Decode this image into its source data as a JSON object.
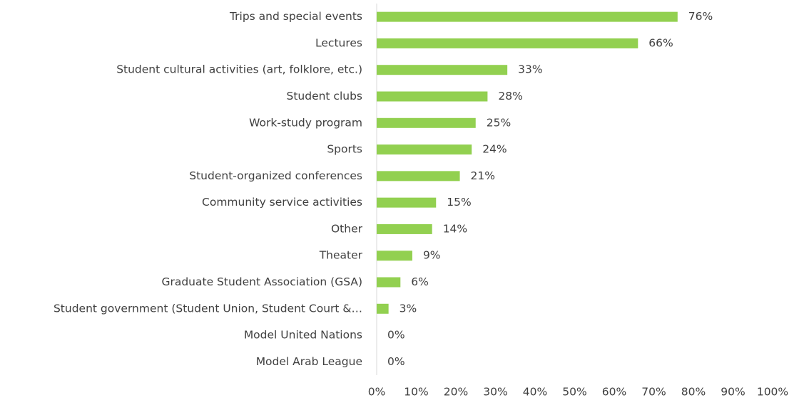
{
  "chart_data": {
    "type": "bar",
    "orientation": "horizontal",
    "categories": [
      "Trips and special events",
      "Lectures",
      "Student cultural activities (art, folklore, etc.)",
      "Student clubs",
      "Work-study program",
      "Sports",
      "Student-organized conferences",
      "Community service activities",
      "Other",
      "Theater",
      "Graduate Student Association (GSA)",
      "Student government (Student Union, Student Court &…",
      "Model United Nations",
      "Model Arab League"
    ],
    "values": [
      76,
      66,
      33,
      28,
      25,
      24,
      21,
      15,
      14,
      9,
      6,
      3,
      0,
      0
    ],
    "value_labels": [
      "76%",
      "66%",
      "33%",
      "28%",
      "25%",
      "24%",
      "21%",
      "15%",
      "14%",
      "9%",
      "6%",
      "3%",
      "0%",
      "0%"
    ],
    "color": "#92d050",
    "xlim": [
      0,
      100
    ],
    "xticks": [
      {
        "value": 0,
        "label": "0%"
      },
      {
        "value": 10,
        "label": "10%"
      },
      {
        "value": 20,
        "label": "20%"
      },
      {
        "value": 30,
        "label": "30%"
      },
      {
        "value": 40,
        "label": "40%"
      },
      {
        "value": 50,
        "label": "50%"
      },
      {
        "value": 60,
        "label": "60%"
      },
      {
        "value": 70,
        "label": "70%"
      },
      {
        "value": 80,
        "label": "80%"
      },
      {
        "value": 90,
        "label": "90%"
      },
      {
        "value": 100,
        "label": "100%"
      }
    ],
    "grid": false
  }
}
